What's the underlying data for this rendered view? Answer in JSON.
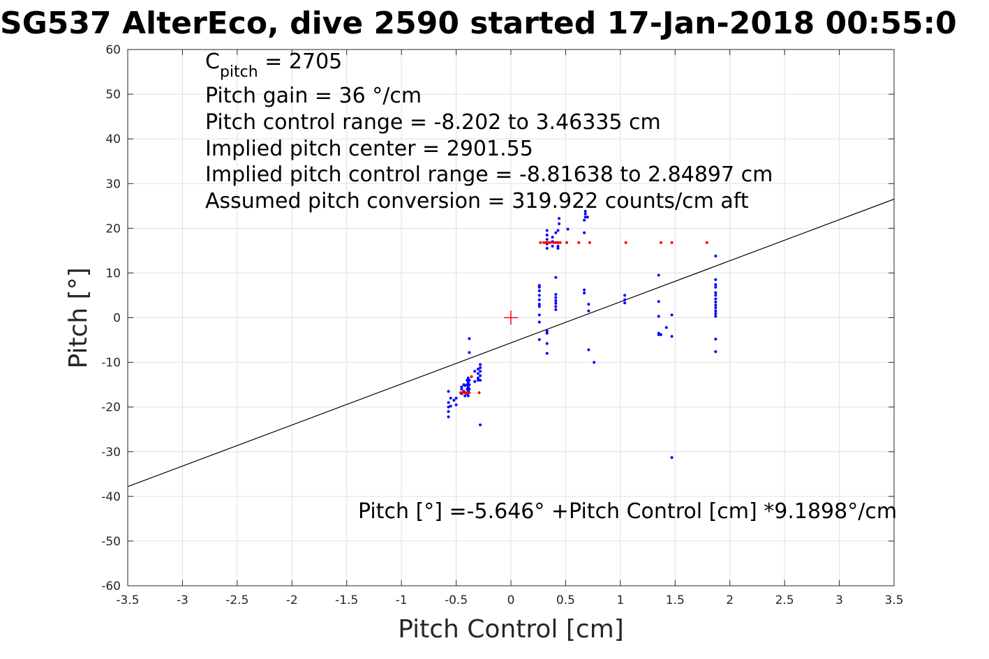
{
  "chart_data": {
    "type": "scatter",
    "title": "SG537 AlterEco, dive 2590 started 17-Jan-2018 00:55:0",
    "xlabel": "Pitch Control [cm]",
    "ylabel": "Pitch [°]",
    "xlim": [
      -3.5,
      3.5
    ],
    "ylim": [
      -60,
      60
    ],
    "xticks": [
      -3.5,
      -3,
      -2.5,
      -2,
      -1.5,
      -1,
      -0.5,
      0,
      0.5,
      1,
      1.5,
      2,
      2.5,
      3,
      3.5
    ],
    "xtick_labels": [
      "-3.5",
      "-3",
      "-2.5",
      "-2",
      "-1.5",
      "-1",
      "-0.5",
      "0",
      "0.5",
      "1",
      "1.5",
      "2",
      "2.5",
      "3",
      "3.5"
    ],
    "yticks": [
      -60,
      -50,
      -40,
      -30,
      -20,
      -10,
      0,
      10,
      20,
      30,
      40,
      50,
      60
    ],
    "ytick_labels": [
      "-60",
      "-50",
      "-40",
      "-30",
      "-20",
      "-10",
      "0",
      "10",
      "20",
      "30",
      "40",
      "50",
      "60"
    ],
    "grid": true,
    "series": [
      {
        "color": "#0000ff",
        "marker": "dot",
        "points": [
          [
            -0.57,
            -16.5
          ],
          [
            -0.57,
            -19.0
          ],
          [
            -0.57,
            -20.0
          ],
          [
            -0.57,
            -21.0
          ],
          [
            -0.57,
            -22.2
          ],
          [
            -0.55,
            -18.0
          ],
          [
            -0.55,
            -19.8
          ],
          [
            -0.52,
            -18.5
          ],
          [
            -0.5,
            -18.0
          ],
          [
            -0.5,
            -19.5
          ],
          [
            -0.45,
            -15.5
          ],
          [
            -0.45,
            -16.0
          ],
          [
            -0.45,
            -17.0
          ],
          [
            -0.43,
            -15.0
          ],
          [
            -0.43,
            -16.5
          ],
          [
            -0.42,
            -15.2
          ],
          [
            -0.42,
            -17.5
          ],
          [
            -0.4,
            -14.0
          ],
          [
            -0.4,
            -15.0
          ],
          [
            -0.4,
            -16.0
          ],
          [
            -0.4,
            -17.0
          ],
          [
            -0.39,
            -13.5
          ],
          [
            -0.39,
            -14.5
          ],
          [
            -0.39,
            -15.5
          ],
          [
            -0.39,
            -16.5
          ],
          [
            -0.39,
            -17.5
          ],
          [
            -0.38,
            -4.7
          ],
          [
            -0.38,
            -7.8
          ],
          [
            -0.38,
            -14.0
          ],
          [
            -0.38,
            -15.0
          ],
          [
            -0.38,
            -16.0
          ],
          [
            -0.33,
            -12.0
          ],
          [
            -0.33,
            -14.3
          ],
          [
            -0.3,
            -11.5
          ],
          [
            -0.3,
            -12.5
          ],
          [
            -0.3,
            -13.5
          ],
          [
            -0.3,
            -14.0
          ],
          [
            -0.28,
            -10.5
          ],
          [
            -0.28,
            -11.2
          ],
          [
            -0.28,
            -12.0
          ],
          [
            -0.28,
            -13.0
          ],
          [
            -0.28,
            -14.0
          ],
          [
            -0.28,
            -24.0
          ],
          [
            0.26,
            -4.9
          ],
          [
            0.26,
            -1.0
          ],
          [
            0.26,
            0.6
          ],
          [
            0.26,
            2.5
          ],
          [
            0.26,
            3.0
          ],
          [
            0.26,
            4.0
          ],
          [
            0.26,
            5.0
          ],
          [
            0.26,
            6.0
          ],
          [
            0.26,
            6.8
          ],
          [
            0.26,
            7.2
          ],
          [
            0.33,
            -8.0
          ],
          [
            0.33,
            -5.8
          ],
          [
            0.33,
            -3.5
          ],
          [
            0.33,
            -3.0
          ],
          [
            0.33,
            15.5
          ],
          [
            0.33,
            16.5
          ],
          [
            0.33,
            17.5
          ],
          [
            0.33,
            18.5
          ],
          [
            0.33,
            19.5
          ],
          [
            0.38,
            16.0
          ],
          [
            0.38,
            17.0
          ],
          [
            0.38,
            18.0
          ],
          [
            0.41,
            1.8
          ],
          [
            0.41,
            2.5
          ],
          [
            0.41,
            3.2
          ],
          [
            0.41,
            3.8
          ],
          [
            0.41,
            4.5
          ],
          [
            0.41,
            5.2
          ],
          [
            0.41,
            9.0
          ],
          [
            0.41,
            19.0
          ],
          [
            0.43,
            15.5
          ],
          [
            0.43,
            16.0
          ],
          [
            0.43,
            16.8
          ],
          [
            0.43,
            19.5
          ],
          [
            0.44,
            21.0
          ],
          [
            0.44,
            22.2
          ],
          [
            0.52,
            19.8
          ],
          [
            0.67,
            5.5
          ],
          [
            0.67,
            6.2
          ],
          [
            0.67,
            19.0
          ],
          [
            0.67,
            21.8
          ],
          [
            0.68,
            22.5
          ],
          [
            0.68,
            23.2
          ],
          [
            0.68,
            23.8
          ],
          [
            0.7,
            22.5
          ],
          [
            0.71,
            1.5
          ],
          [
            0.71,
            3.0
          ],
          [
            0.71,
            -7.2
          ],
          [
            0.76,
            -10.0
          ],
          [
            1.04,
            3.3
          ],
          [
            1.04,
            4.0
          ],
          [
            1.04,
            5.0
          ],
          [
            1.35,
            -3.8
          ],
          [
            1.35,
            -3.5
          ],
          [
            1.35,
            0.3
          ],
          [
            1.35,
            3.6
          ],
          [
            1.35,
            9.5
          ],
          [
            1.37,
            -3.8
          ],
          [
            1.42,
            -2.2
          ],
          [
            1.47,
            -4.2
          ],
          [
            1.47,
            0.6
          ],
          [
            1.47,
            -31.3
          ],
          [
            1.87,
            -7.6
          ],
          [
            1.87,
            -4.8
          ],
          [
            1.87,
            0.3
          ],
          [
            1.87,
            0.9
          ],
          [
            1.87,
            1.5
          ],
          [
            1.87,
            2.2
          ],
          [
            1.87,
            2.8
          ],
          [
            1.87,
            3.5
          ],
          [
            1.87,
            4.2
          ],
          [
            1.87,
            5.0
          ],
          [
            1.87,
            5.6
          ],
          [
            1.87,
            6.8
          ],
          [
            1.87,
            7.4
          ],
          [
            1.87,
            8.5
          ],
          [
            1.87,
            13.8
          ]
        ]
      },
      {
        "color": "#ff0000",
        "marker": "dot",
        "points": [
          [
            -0.46,
            -16.8
          ],
          [
            -0.44,
            -16.8
          ],
          [
            -0.42,
            -16.8
          ],
          [
            -0.4,
            -16.8
          ],
          [
            -0.38,
            -16.8
          ],
          [
            -0.36,
            -13.2
          ],
          [
            -0.29,
            -16.8
          ],
          [
            0.27,
            16.8
          ],
          [
            0.3,
            16.8
          ],
          [
            0.32,
            16.8
          ],
          [
            0.34,
            16.8
          ],
          [
            0.36,
            16.8
          ],
          [
            0.39,
            16.8
          ],
          [
            0.41,
            16.8
          ],
          [
            0.43,
            16.8
          ],
          [
            0.45,
            16.8
          ],
          [
            0.51,
            16.8
          ],
          [
            0.62,
            16.8
          ],
          [
            0.72,
            16.8
          ],
          [
            1.05,
            16.8
          ],
          [
            1.37,
            16.8
          ],
          [
            1.47,
            16.8
          ],
          [
            1.79,
            16.8
          ]
        ]
      }
    ],
    "fit_line": {
      "intercept": -5.646,
      "slope": 9.1898,
      "color": "#000000"
    },
    "center_marker": {
      "x": 0,
      "y": 0,
      "color": "#ff0000"
    }
  },
  "annotations": {
    "c_pitch_main": "C",
    "c_pitch_sub": "pitch",
    "c_pitch_value": " = 2705",
    "line2": "Pitch gain = 36 °/cm",
    "line3": "Pitch control range = -8.202 to 3.46335 cm",
    "line4": "Implied pitch center = 2901.55",
    "line5": "Implied pitch control range = -8.81638 to 2.84897 cm",
    "line6": "Assumed pitch conversion = 319.922 counts/cm aft",
    "fit_equation": "Pitch [°] =-5.646° +Pitch Control [cm] *9.1898°/cm"
  }
}
